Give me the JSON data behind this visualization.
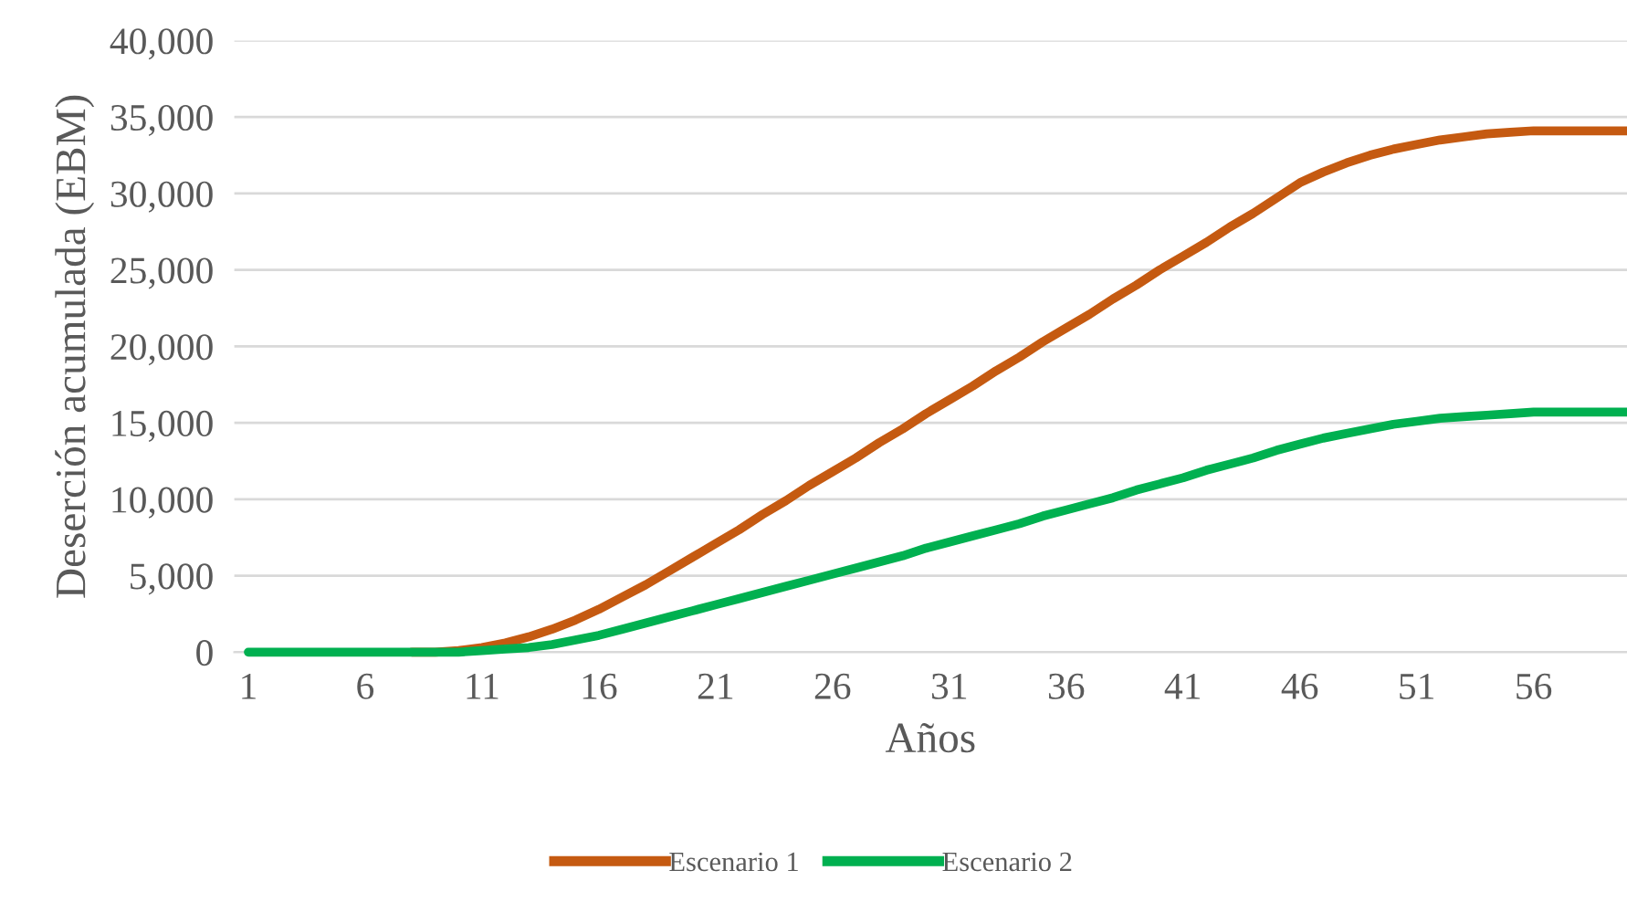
{
  "chart_data": {
    "type": "line",
    "xlabel": "Años",
    "ylabel": "Deserción acumulada (EBM)",
    "categories": [
      "1",
      null,
      null,
      null,
      null,
      "6",
      null,
      null,
      null,
      null,
      "11",
      null,
      null,
      null,
      null,
      "16",
      null,
      null,
      null,
      null,
      "21",
      null,
      null,
      null,
      null,
      "26",
      null,
      null,
      null,
      null,
      "31",
      null,
      null,
      null,
      null,
      "36",
      null,
      null,
      null,
      null,
      "41",
      null,
      null,
      null,
      null,
      "46",
      null,
      null,
      null,
      null,
      "51",
      null,
      null,
      null,
      null,
      "56",
      null,
      null,
      null,
      null
    ],
    "series": [
      {
        "name": "Escenario 1",
        "color": "#c55a11",
        "values": [
          null,
          null,
          null,
          null,
          null,
          null,
          null,
          0,
          0,
          100,
          300,
          600,
          1000,
          1500,
          2100,
          2800,
          3600,
          4400,
          5300,
          6200,
          7100,
          8000,
          9000,
          9900,
          10900,
          11800,
          12700,
          13700,
          14600,
          15600,
          16500,
          17400,
          18400,
          19300,
          20300,
          21200,
          22100,
          23100,
          24000,
          25000,
          25900,
          26800,
          27800,
          28700,
          29700,
          30700,
          31400,
          32000,
          32500,
          32900,
          33200,
          33500,
          33700,
          33900,
          34000,
          34100,
          34100,
          34100,
          34100,
          34100
        ]
      },
      {
        "name": "Escenario 2",
        "color": "#00b050",
        "values": [
          0,
          0,
          0,
          0,
          0,
          0,
          0,
          0,
          0,
          0,
          100,
          200,
          300,
          500,
          800,
          1100,
          1500,
          1900,
          2300,
          2700,
          3100,
          3500,
          3900,
          4300,
          4700,
          5100,
          5500,
          5900,
          6300,
          6800,
          7200,
          7600,
          8000,
          8400,
          8900,
          9300,
          9700,
          10100,
          10600,
          11000,
          11400,
          11900,
          12300,
          12700,
          13200,
          13600,
          14000,
          14300,
          14600,
          14900,
          15100,
          15300,
          15400,
          15500,
          15600,
          15700,
          15700,
          15700,
          15700,
          15700
        ]
      }
    ],
    "ylim": [
      0,
      40000
    ],
    "yticks": [
      {
        "value": 0,
        "label": "0"
      },
      {
        "value": 5000,
        "label": "5,000"
      },
      {
        "value": 10000,
        "label": "10,000"
      },
      {
        "value": 15000,
        "label": "15,000"
      },
      {
        "value": 20000,
        "label": "20,000"
      },
      {
        "value": 25000,
        "label": "25,000"
      },
      {
        "value": 30000,
        "label": "30,000"
      },
      {
        "value": 35000,
        "label": "35,000"
      },
      {
        "value": 40000,
        "label": "40,000"
      }
    ],
    "grid": "y",
    "legend": "bottom",
    "marker": "none",
    "line_style": "solid"
  }
}
